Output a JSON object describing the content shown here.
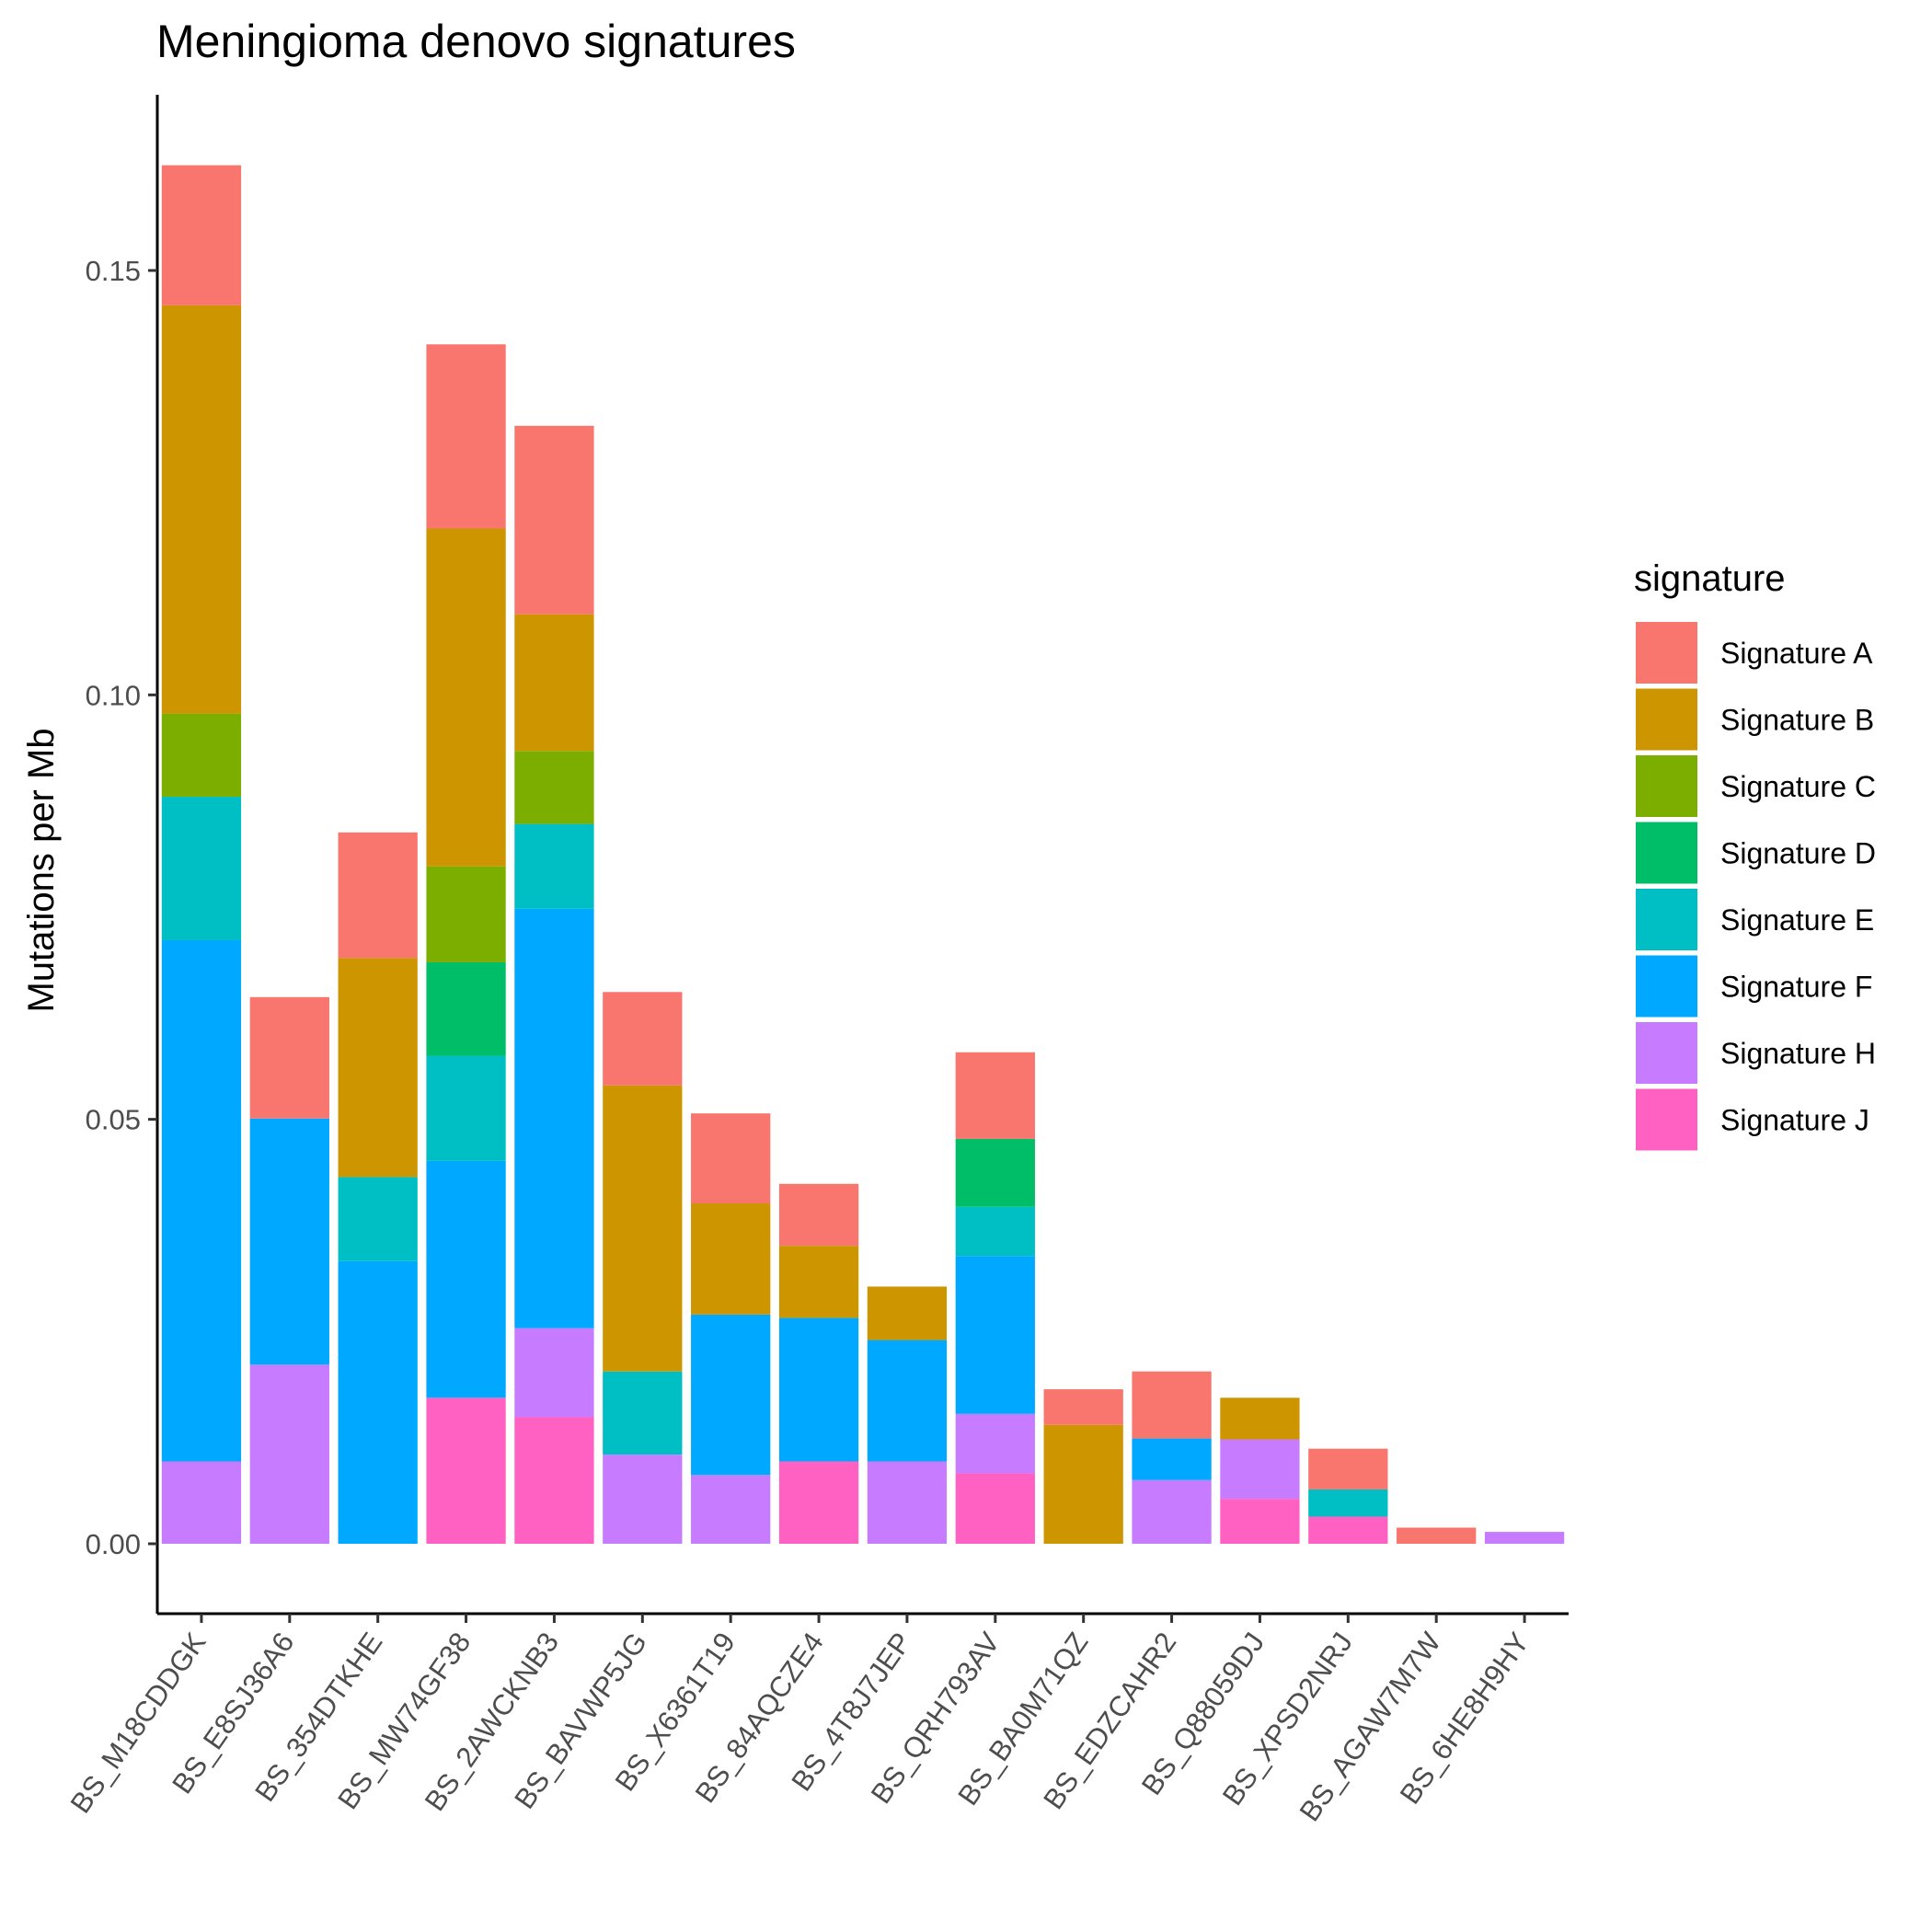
{
  "chart_data": {
    "type": "bar",
    "stacked": true,
    "title": "Meningioma denovo signatures",
    "xlabel": "",
    "ylabel": "Mutations per Mb",
    "ylim": [
      -0.008,
      0.17
    ],
    "yticks": [
      0.0,
      0.05,
      0.1,
      0.15
    ],
    "ytick_labels": [
      "0.00",
      "0.05",
      "0.10",
      "0.15"
    ],
    "grid": false,
    "legend": {
      "title": "signature",
      "position": "right"
    },
    "categories": [
      "BS_M18CDDGK",
      "BS_E8SJ36A6",
      "BS_354DTKHE",
      "BS_MW74GF38",
      "BS_2AWCKNB3",
      "BS_BAVWP5JG",
      "BS_X6361T19",
      "BS_84AQCZE4",
      "BS_4T8J7JEP",
      "BS_QRH793AV",
      "BS_BA0M71QZ",
      "BS_EDZCAHR2",
      "BS_Q88059DJ",
      "BS_XPSD2NRJ",
      "BS_AGAW7M7W",
      "BS_6HE8H9HY"
    ],
    "series": [
      {
        "name": "Signature J",
        "color": "#FF61C3",
        "values": [
          0,
          0,
          0,
          0.0172,
          0.0149,
          0,
          0,
          0.0097,
          0,
          0.0083,
          0,
          0,
          0.0053,
          0.0032,
          0,
          0
        ]
      },
      {
        "name": "Signature H",
        "color": "#C77CFF",
        "values": [
          0.0097,
          0.0211,
          0,
          0,
          0.0105,
          0.0105,
          0.0081,
          0,
          0.0097,
          0.007,
          0,
          0.0075,
          0.007,
          0,
          0,
          0.0014
        ]
      },
      {
        "name": "Signature F",
        "color": "#00A9FF",
        "values": [
          0.0614,
          0.029,
          0.0333,
          0.0279,
          0.0494,
          0,
          0.0189,
          0.0169,
          0.0143,
          0.0186,
          0,
          0.0049,
          0,
          0,
          0,
          0
        ]
      },
      {
        "name": "Signature E",
        "color": "#00BFC4",
        "values": [
          0.0169,
          0,
          0.0099,
          0.0124,
          0.01,
          0.0098,
          0,
          0,
          0,
          0.0058,
          0,
          0,
          0,
          0.0032,
          0,
          0
        ]
      },
      {
        "name": "Signature D",
        "color": "#00BE67",
        "values": [
          0,
          0,
          0,
          0.011,
          0,
          0,
          0,
          0,
          0,
          0.008,
          0,
          0,
          0,
          0,
          0,
          0
        ]
      },
      {
        "name": "Signature C",
        "color": "#7CAE00",
        "values": [
          0.0098,
          0,
          0,
          0.0113,
          0.0086,
          0,
          0,
          0,
          0,
          0,
          0,
          0,
          0,
          0,
          0,
          0
        ]
      },
      {
        "name": "Signature B",
        "color": "#CD9600",
        "values": [
          0.0481,
          0,
          0.0258,
          0.0398,
          0.0161,
          0.0337,
          0.0131,
          0.0085,
          0.0063,
          0,
          0.014,
          0,
          0.0049,
          0,
          0,
          0
        ]
      },
      {
        "name": "Signature A",
        "color": "#F8766D",
        "values": [
          0.0165,
          0.0143,
          0.0148,
          0.0217,
          0.0222,
          0.011,
          0.0106,
          0.0073,
          0,
          0.0102,
          0.0042,
          0.0079,
          0,
          0.0048,
          0.0019,
          0
        ]
      }
    ],
    "legend_order": [
      "Signature A",
      "Signature B",
      "Signature C",
      "Signature D",
      "Signature E",
      "Signature F",
      "Signature H",
      "Signature J"
    ]
  }
}
